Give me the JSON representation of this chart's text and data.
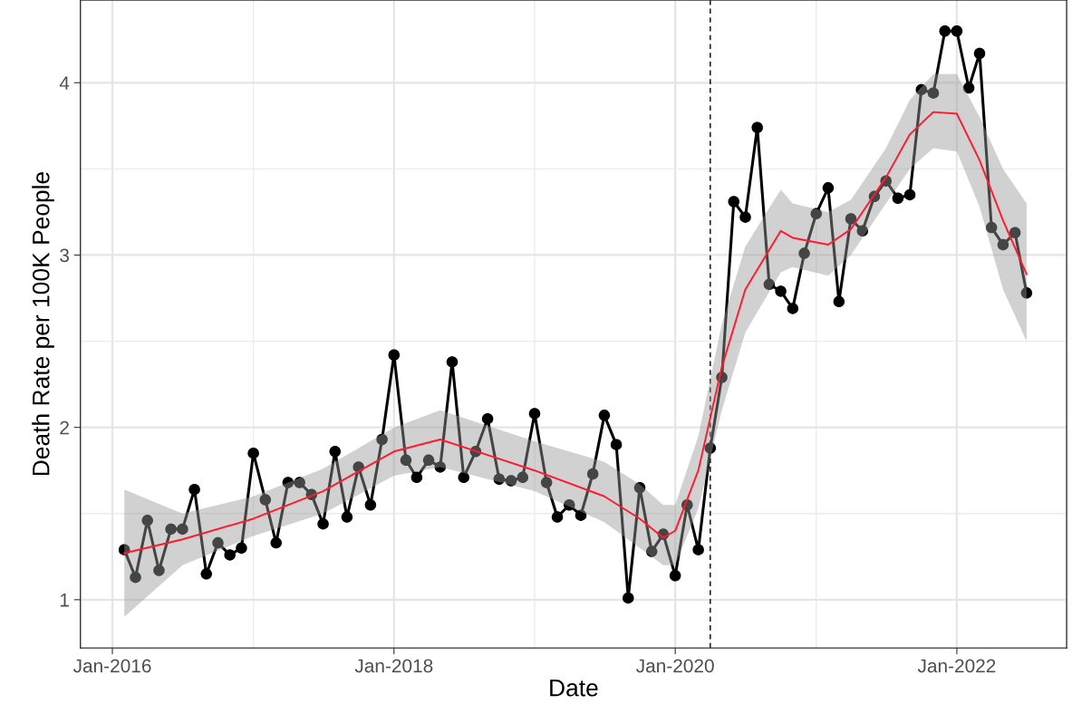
{
  "chart_data": {
    "type": "line",
    "xlabel": "Date",
    "ylabel": "Death Rate per 100K People",
    "x": [
      "2016-02",
      "2016-03",
      "2016-04",
      "2016-05",
      "2016-06",
      "2016-07",
      "2016-08",
      "2016-09",
      "2016-10",
      "2016-11",
      "2016-12",
      "2017-01",
      "2017-02",
      "2017-03",
      "2017-04",
      "2017-05",
      "2017-06",
      "2017-07",
      "2017-08",
      "2017-09",
      "2017-10",
      "2017-11",
      "2017-12",
      "2018-01",
      "2018-02",
      "2018-03",
      "2018-04",
      "2018-05",
      "2018-06",
      "2018-07",
      "2018-08",
      "2018-09",
      "2018-10",
      "2018-11",
      "2018-12",
      "2019-01",
      "2019-02",
      "2019-03",
      "2019-04",
      "2019-05",
      "2019-06",
      "2019-07",
      "2019-08",
      "2019-09",
      "2019-10",
      "2019-11",
      "2019-12",
      "2020-01",
      "2020-02",
      "2020-03",
      "2020-04",
      "2020-05",
      "2020-06",
      "2020-07",
      "2020-08",
      "2020-09",
      "2020-10",
      "2020-11",
      "2020-12",
      "2021-01",
      "2021-02",
      "2021-03",
      "2021-04",
      "2021-05",
      "2021-06",
      "2021-07",
      "2021-08",
      "2021-09",
      "2021-10",
      "2021-11",
      "2021-12",
      "2022-01",
      "2022-02",
      "2022-03",
      "2022-04",
      "2022-05",
      "2022-06",
      "2022-07"
    ],
    "series": [
      {
        "color": "#000000",
        "marker": "circle",
        "values": [
          1.29,
          1.13,
          1.46,
          1.17,
          1.41,
          1.41,
          1.64,
          1.15,
          1.33,
          1.26,
          1.3,
          1.85,
          1.58,
          1.33,
          1.68,
          1.68,
          1.61,
          1.44,
          1.86,
          1.48,
          1.77,
          1.55,
          1.93,
          2.42,
          1.81,
          1.71,
          1.81,
          1.77,
          2.38,
          1.71,
          1.86,
          2.05,
          1.7,
          1.69,
          1.71,
          2.08,
          1.68,
          1.48,
          1.55,
          1.49,
          1.73,
          2.07,
          1.9,
          1.01,
          1.65,
          1.28,
          1.38,
          1.14,
          1.55,
          1.29,
          1.88,
          2.29,
          3.31,
          3.22,
          3.74,
          2.83,
          2.79,
          2.69,
          3.01,
          3.24,
          3.39,
          2.73,
          3.21,
          3.14,
          3.34,
          3.43,
          3.33,
          3.35,
          3.96,
          3.94,
          4.3,
          4.3,
          3.97,
          4.17,
          3.16,
          3.06,
          3.13,
          2.78
        ]
      },
      {
        "color": "#ff1a2e",
        "marker": "none",
        "x": [
          "2016-02",
          "2016-07",
          "2017-01",
          "2017-07",
          "2018-01",
          "2018-05",
          "2019-01",
          "2019-07",
          "2019-10",
          "2019-12",
          "2020-01",
          "2020-03",
          "2020-05",
          "2020-07",
          "2020-10",
          "2020-11",
          "2021-02",
          "2021-04",
          "2021-07",
          "2021-09",
          "2021-11",
          "2022-01",
          "2022-03",
          "2022-05",
          "2022-07"
        ],
        "values": [
          1.27,
          1.35,
          1.47,
          1.63,
          1.86,
          1.93,
          1.75,
          1.6,
          1.47,
          1.36,
          1.4,
          1.75,
          2.35,
          2.8,
          3.14,
          3.1,
          3.06,
          3.15,
          3.45,
          3.7,
          3.83,
          3.82,
          3.55,
          3.2,
          2.89
        ],
        "lower": [
          0.9,
          1.2,
          1.37,
          1.5,
          1.72,
          1.77,
          1.63,
          1.45,
          1.3,
          1.2,
          1.2,
          1.53,
          2.1,
          2.55,
          2.9,
          2.93,
          2.88,
          3.0,
          3.3,
          3.5,
          3.62,
          3.6,
          3.28,
          2.8,
          2.5
        ],
        "upper": [
          1.64,
          1.5,
          1.6,
          1.76,
          2.0,
          2.1,
          1.92,
          1.8,
          1.67,
          1.55,
          1.55,
          1.95,
          2.6,
          3.05,
          3.38,
          3.3,
          3.25,
          3.32,
          3.62,
          3.9,
          4.05,
          4.05,
          3.8,
          3.5,
          3.3
        ]
      }
    ],
    "xlim": [
      "2015-10-10",
      "2022-10-13"
    ],
    "xticks": [
      {
        "value": "2016-01-01",
        "label": "Jan-2016"
      },
      {
        "value": "2017-01-01",
        "label": null
      },
      {
        "value": "2018-01-01",
        "label": "Jan-2018"
      },
      {
        "value": "2019-01-01",
        "label": null
      },
      {
        "value": "2020-01-01",
        "label": "Jan-2020"
      },
      {
        "value": "2021-01-01",
        "label": null
      },
      {
        "value": "2022-01-01",
        "label": "Jan-2022"
      }
    ],
    "ylim": [
      0.72,
      4.48
    ],
    "yticks": [
      1,
      {
        "value": 1.5,
        "label": null
      },
      2,
      {
        "value": 2.5,
        "label": null
      },
      3,
      {
        "value": 3.5,
        "label": null
      },
      4
    ],
    "ref_lines": [
      {
        "axis": "x",
        "value": "2020-04-01",
        "color": "#000000",
        "line_style": "dashed"
      }
    ],
    "grid": true,
    "legend": false
  }
}
